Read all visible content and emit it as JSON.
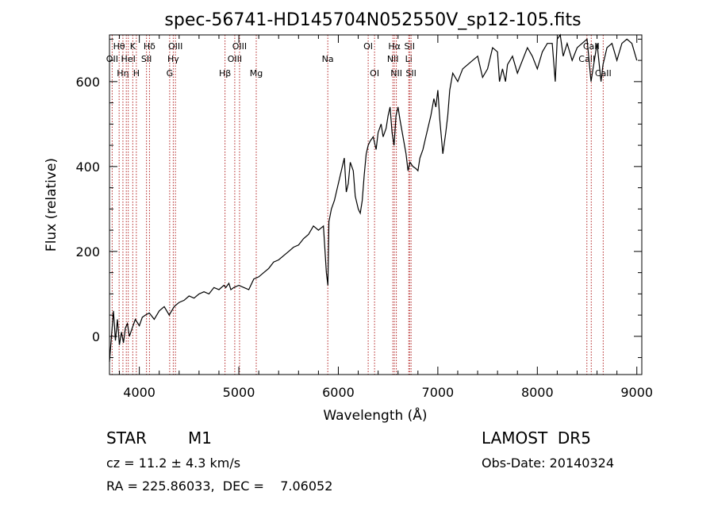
{
  "chart_data": {
    "type": "line",
    "title": "spec-56741-HD145704N052550V_sp12-105.fits",
    "xlabel": "Wavelength (Å)",
    "ylabel": "Flux (relative)",
    "xlim": [
      3700,
      9050
    ],
    "ylim": [
      -90,
      710
    ],
    "xticks": [
      4000,
      5000,
      6000,
      7000,
      8000,
      9000
    ],
    "yticks": [
      0,
      200,
      400,
      600
    ],
    "grid": false,
    "line_color": "#000000",
    "marker_color": "#b22222",
    "series": [
      {
        "x": [
          3700,
          3740,
          3760,
          3780,
          3800,
          3820,
          3840,
          3860,
          3880,
          3900,
          3930,
          3960,
          4000,
          4030,
          4060,
          4100,
          4150,
          4200,
          4250,
          4300,
          4350,
          4400,
          4450,
          4500,
          4550,
          4600,
          4650,
          4700,
          4750,
          4800,
          4850,
          4870,
          4900,
          4920,
          4950,
          5000,
          5050,
          5100,
          5150,
          5200,
          5250,
          5300,
          5350,
          5400,
          5450,
          5500,
          5550,
          5600,
          5650,
          5700,
          5750,
          5800,
          5850,
          5880,
          5895,
          5905,
          5930,
          5960,
          6000,
          6020,
          6040,
          6060,
          6080,
          6100,
          6120,
          6150,
          6170,
          6200,
          6220,
          6240,
          6260,
          6280,
          6300,
          6320,
          6350,
          6380,
          6400,
          6430,
          6450,
          6480,
          6500,
          6520,
          6540,
          6560,
          6580,
          6600,
          6620,
          6650,
          6680,
          6700,
          6720,
          6750,
          6780,
          6800,
          6820,
          6850,
          6880,
          6900,
          6930,
          6960,
          6980,
          7000,
          7020,
          7050,
          7080,
          7100,
          7120,
          7150,
          7200,
          7250,
          7300,
          7350,
          7400,
          7450,
          7500,
          7550,
          7600,
          7620,
          7650,
          7680,
          7700,
          7750,
          7800,
          7850,
          7900,
          7950,
          8000,
          8050,
          8100,
          8150,
          8180,
          8200,
          8230,
          8260,
          8300,
          8350,
          8400,
          8450,
          8500,
          8520,
          8540,
          8560,
          8600,
          8640,
          8660,
          8700,
          8750,
          8800,
          8850,
          8900,
          8950,
          9000
        ],
        "y": [
          -60,
          60,
          -10,
          40,
          -20,
          10,
          -15,
          20,
          30,
          0,
          20,
          40,
          25,
          45,
          50,
          55,
          40,
          60,
          70,
          50,
          70,
          80,
          85,
          95,
          90,
          100,
          105,
          100,
          115,
          110,
          120,
          115,
          125,
          110,
          115,
          120,
          115,
          110,
          135,
          140,
          150,
          160,
          175,
          180,
          190,
          200,
          210,
          215,
          230,
          240,
          260,
          250,
          260,
          150,
          120,
          270,
          300,
          320,
          360,
          380,
          400,
          420,
          340,
          360,
          410,
          390,
          330,
          300,
          290,
          320,
          380,
          430,
          450,
          460,
          470,
          440,
          480,
          500,
          470,
          490,
          520,
          540,
          480,
          450,
          520,
          540,
          510,
          470,
          430,
          390,
          410,
          400,
          395,
          390,
          420,
          440,
          470,
          490,
          520,
          560,
          540,
          580,
          510,
          430,
          480,
          520,
          580,
          620,
          600,
          630,
          640,
          650,
          660,
          610,
          630,
          680,
          670,
          600,
          630,
          600,
          640,
          660,
          620,
          650,
          680,
          660,
          630,
          670,
          690,
          690,
          600,
          700,
          710,
          660,
          690,
          650,
          680,
          690,
          700,
          650,
          600,
          630,
          690,
          600,
          640,
          680,
          690,
          650,
          690,
          700,
          690,
          650
        ]
      }
    ],
    "line_markers": [
      {
        "x": 3727,
        "label": "OII",
        "row": 2
      },
      {
        "x": 3797,
        "label": "Hθ",
        "row": 1
      },
      {
        "x": 3835,
        "label": "Hη",
        "row": 3
      },
      {
        "x": 3869,
        "label": "",
        "row": 0
      },
      {
        "x": 3889,
        "label": "HeI",
        "row": 2
      },
      {
        "x": 3934,
        "label": "K",
        "row": 1
      },
      {
        "x": 3970,
        "label": "H",
        "row": 3
      },
      {
        "x": 4072,
        "label": "SII",
        "row": 2
      },
      {
        "x": 4102,
        "label": "Hδ",
        "row": 1
      },
      {
        "x": 4305,
        "label": "G",
        "row": 3
      },
      {
        "x": 4341,
        "label": "Hγ",
        "row": 2
      },
      {
        "x": 4363,
        "label": "OIII",
        "row": 1
      },
      {
        "x": 4861,
        "label": "Hβ",
        "row": 3
      },
      {
        "x": 4959,
        "label": "OIII",
        "row": 2
      },
      {
        "x": 5007,
        "label": "OIII",
        "row": 1
      },
      {
        "x": 5175,
        "label": "Mg",
        "row": 3
      },
      {
        "x": 5894,
        "label": "Na",
        "row": 2
      },
      {
        "x": 6300,
        "label": "OI",
        "row": 1
      },
      {
        "x": 6364,
        "label": "OI",
        "row": 3
      },
      {
        "x": 6548,
        "label": "NII",
        "row": 2
      },
      {
        "x": 6563,
        "label": "Hα",
        "row": 1
      },
      {
        "x": 6583,
        "label": "NII",
        "row": 3
      },
      {
        "x": 6708,
        "label": "Li",
        "row": 2
      },
      {
        "x": 6716,
        "label": "SII",
        "row": 1
      },
      {
        "x": 6731,
        "label": "SII",
        "row": 3
      },
      {
        "x": 8498,
        "label": "CaII",
        "row": 2
      },
      {
        "x": 8542,
        "label": "CaII",
        "row": 1
      },
      {
        "x": 8662,
        "label": "CaII",
        "row": 3
      }
    ]
  },
  "info": {
    "object_class": "STAR",
    "subclass": "M1",
    "survey": "LAMOST  DR5",
    "redshift": "cz = 11.2 ± 4.3 km/s",
    "obs_date": "Obs-Date: 20140324",
    "coords": "RA = 225.86033,  DEC =    7.06052"
  }
}
